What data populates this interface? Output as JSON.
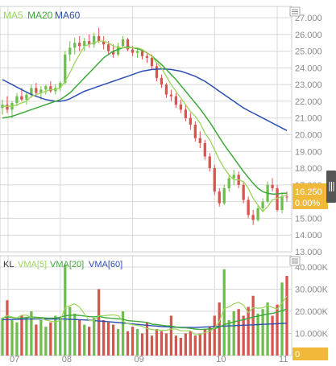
{
  "colors": {
    "ma5": "#9bd65a",
    "ma20": "#3fa83a",
    "ma60": "#2d4fb0",
    "up": "#6cbf4a",
    "down": "#d9534f",
    "grid": "#d8d8d8",
    "axis_text": "#8a8a8a",
    "price_tag": "#f0b93a",
    "handle": "#555555"
  },
  "icons": {
    "settings_top": "list-settings-icon",
    "settings_bottom": "list-settings-icon",
    "drag_handle": "vertical-grip-icon"
  },
  "legend_price": {
    "ma5": "MA5",
    "ma20": "MA20",
    "ma60": "MA60"
  },
  "legend_volume": {
    "kl": "KL",
    "vma5": "VMA[5]",
    "vma20": "VMA[20]",
    "vma60": "VMA[60]"
  },
  "price_tag": {
    "price": "16.250",
    "change": "0.00%"
  },
  "volume_tag": {
    "value": "0"
  },
  "chart_data": [
    {
      "type": "line",
      "title": "",
      "legend": [
        "MA5",
        "MA20",
        "MA60"
      ],
      "x_tick_labels": [
        "07",
        "08",
        "09",
        "10",
        "11"
      ],
      "y_tick_labels": [
        "27.000",
        "26.000",
        "25.000",
        "24.000",
        "23.000",
        "22.000",
        "21.000",
        "20.000",
        "19.000",
        "18.000",
        "17.000",
        "16.000",
        "15.000",
        "14.000",
        "13.000"
      ],
      "ylim": [
        13,
        27
      ],
      "candles": [
        [
          21.6,
          22.1,
          21.2,
          21.8
        ],
        [
          21.8,
          22.3,
          21.3,
          21.5
        ],
        [
          21.5,
          22.0,
          21.0,
          21.9
        ],
        [
          21.9,
          22.5,
          21.7,
          22.3
        ],
        [
          22.3,
          22.8,
          22.0,
          22.1
        ],
        [
          22.1,
          22.6,
          21.8,
          22.4
        ],
        [
          22.4,
          23.0,
          22.2,
          22.8
        ],
        [
          22.8,
          23.1,
          22.3,
          22.5
        ],
        [
          22.5,
          22.9,
          22.1,
          22.7
        ],
        [
          22.7,
          23.0,
          22.4,
          22.9
        ],
        [
          22.9,
          23.2,
          22.5,
          22.6
        ],
        [
          22.6,
          23.0,
          22.4,
          22.8
        ],
        [
          22.8,
          23.2,
          22.6,
          23.1
        ],
        [
          23.1,
          25.0,
          23.0,
          24.8
        ],
        [
          24.8,
          25.6,
          24.4,
          25.2
        ],
        [
          25.2,
          25.8,
          24.8,
          25.5
        ],
        [
          25.5,
          25.9,
          25.0,
          25.3
        ],
        [
          25.3,
          25.8,
          25.0,
          25.6
        ],
        [
          25.6,
          26.0,
          25.2,
          25.4
        ],
        [
          25.4,
          26.1,
          25.2,
          25.9
        ],
        [
          25.9,
          26.4,
          25.5,
          25.6
        ],
        [
          25.6,
          25.9,
          25.1,
          25.4
        ],
        [
          25.4,
          25.6,
          24.8,
          25.0
        ],
        [
          25.0,
          25.4,
          24.6,
          24.8
        ],
        [
          24.8,
          25.5,
          24.7,
          25.3
        ],
        [
          25.3,
          25.9,
          25.2,
          25.7
        ],
        [
          25.7,
          25.8,
          25.0,
          25.1
        ],
        [
          25.1,
          25.3,
          24.7,
          24.9
        ],
        [
          24.9,
          25.2,
          24.6,
          25.0
        ],
        [
          25.0,
          25.1,
          24.5,
          24.7
        ],
        [
          24.7,
          24.9,
          24.3,
          24.6
        ],
        [
          24.6,
          24.8,
          23.9,
          24.1
        ],
        [
          24.1,
          24.3,
          23.2,
          23.4
        ],
        [
          23.4,
          23.6,
          22.8,
          23.0
        ],
        [
          23.0,
          23.1,
          22.2,
          22.4
        ],
        [
          22.4,
          22.7,
          22.0,
          22.3
        ],
        [
          22.3,
          22.5,
          21.6,
          21.8
        ],
        [
          21.8,
          22.1,
          21.3,
          21.5
        ],
        [
          21.5,
          21.8,
          20.8,
          21.0
        ],
        [
          21.0,
          21.3,
          20.3,
          20.6
        ],
        [
          20.6,
          20.8,
          19.6,
          19.8
        ],
        [
          19.8,
          20.2,
          19.2,
          19.5
        ],
        [
          19.5,
          19.7,
          18.5,
          18.7
        ],
        [
          18.7,
          18.9,
          17.8,
          18.0
        ],
        [
          18.0,
          18.2,
          16.4,
          16.6
        ],
        [
          16.6,
          16.8,
          15.7,
          15.9
        ],
        [
          15.9,
          17.0,
          15.8,
          16.8
        ],
        [
          16.8,
          17.6,
          16.6,
          17.4
        ],
        [
          17.4,
          17.9,
          17.0,
          17.6
        ],
        [
          17.6,
          17.8,
          16.8,
          17.0
        ],
        [
          17.0,
          17.2,
          15.9,
          16.1
        ],
        [
          16.1,
          16.3,
          15.0,
          15.2
        ],
        [
          15.2,
          15.5,
          14.6,
          14.9
        ],
        [
          14.9,
          15.8,
          14.8,
          15.6
        ],
        [
          15.6,
          16.2,
          15.4,
          16.0
        ],
        [
          16.0,
          17.2,
          15.9,
          17.0
        ],
        [
          17.0,
          17.4,
          16.6,
          16.8
        ],
        [
          16.8,
          17.0,
          15.4,
          15.5
        ],
        [
          15.5,
          16.5,
          15.3,
          16.3
        ],
        [
          16.3,
          16.6,
          16.0,
          16.25
        ]
      ],
      "ma5": [
        21.7,
        21.7,
        21.7,
        21.8,
        21.9,
        22.0,
        22.3,
        22.4,
        22.5,
        22.6,
        22.7,
        22.7,
        22.8,
        23.2,
        23.7,
        24.3,
        24.8,
        25.3,
        25.4,
        25.5,
        25.6,
        25.6,
        25.5,
        25.3,
        25.2,
        25.2,
        25.2,
        25.2,
        25.2,
        25.1,
        24.9,
        24.7,
        24.3,
        24.0,
        23.5,
        23.0,
        22.6,
        22.2,
        21.8,
        21.4,
        21.1,
        20.7,
        20.1,
        19.7,
        19.1,
        18.5,
        18.0,
        17.6,
        17.3,
        17.3,
        17.2,
        16.8,
        16.2,
        15.8,
        15.4,
        15.7,
        16.1,
        16.2,
        16.3,
        16.4
      ],
      "ma20": [
        21.0,
        21.05,
        21.1,
        21.2,
        21.3,
        21.4,
        21.5,
        21.6,
        21.7,
        21.8,
        21.9,
        22.0,
        22.1,
        22.3,
        22.5,
        22.8,
        23.1,
        23.4,
        23.7,
        24.0,
        24.3,
        24.6,
        24.8,
        25.0,
        25.1,
        25.2,
        25.25,
        25.2,
        25.15,
        25.05,
        24.9,
        24.7,
        24.45,
        24.2,
        23.9,
        23.6,
        23.3,
        22.95,
        22.6,
        22.25,
        21.9,
        21.55,
        21.15,
        20.75,
        20.3,
        19.85,
        19.4,
        19.0,
        18.6,
        18.2,
        17.8,
        17.45,
        17.1,
        16.8,
        16.6,
        16.5,
        16.45,
        16.45,
        16.5,
        16.5
      ],
      "ma60": [
        23.3,
        23.15,
        23.0,
        22.85,
        22.7,
        22.55,
        22.4,
        22.3,
        22.2,
        22.1,
        22.05,
        22.0,
        22.0,
        22.05,
        22.15,
        22.3,
        22.45,
        22.6,
        22.7,
        22.8,
        22.9,
        23.0,
        23.1,
        23.2,
        23.3,
        23.4,
        23.5,
        23.6,
        23.7,
        23.8,
        23.85,
        23.9,
        23.92,
        23.93,
        23.92,
        23.9,
        23.85,
        23.8,
        23.7,
        23.6,
        23.5,
        23.35,
        23.2,
        23.0,
        22.8,
        22.6,
        22.4,
        22.2,
        22.0,
        21.8,
        21.6,
        21.45,
        21.3,
        21.15,
        21.0,
        20.85,
        20.7,
        20.55,
        20.4,
        20.25
      ]
    },
    {
      "type": "bar",
      "title": "",
      "legend": [
        "KL",
        "VMA[5]",
        "VMA[20]",
        "VMA[60]"
      ],
      "x_tick_labels": [
        "07",
        "08",
        "09",
        "10",
        "11"
      ],
      "y_tick_labels": [
        "40.000K",
        "30.000K",
        "20.000K",
        "10.000K",
        "0"
      ],
      "ylim": [
        0,
        40000
      ],
      "volumes": [
        17000,
        25000,
        16000,
        15000,
        18000,
        17000,
        20000,
        14000,
        16000,
        13000,
        15000,
        18000,
        17000,
        41000,
        22000,
        19000,
        16000,
        14000,
        13000,
        17000,
        30000,
        16000,
        15000,
        14000,
        12000,
        20000,
        11000,
        13000,
        12000,
        10000,
        15000,
        9000,
        12000,
        11000,
        10000,
        18000,
        9000,
        8000,
        10000,
        11000,
        9000,
        10000,
        12000,
        13000,
        18000,
        24000,
        39000,
        16000,
        20000,
        21000,
        18000,
        22000,
        27000,
        19000,
        21000,
        24000,
        18000,
        23000,
        33000,
        36000
      ],
      "vma5": [
        17000,
        18000,
        17500,
        17000,
        18200,
        18200,
        17200,
        16800,
        17000,
        16000,
        15600,
        15200,
        15800,
        21600,
        22600,
        23400,
        22000,
        18800,
        15800,
        15800,
        18000,
        18000,
        18200,
        18400,
        18000,
        15400,
        14400,
        14000,
        13600,
        13200,
        12200,
        11800,
        11600,
        11400,
        11400,
        12000,
        12000,
        11200,
        11200,
        11200,
        9400,
        9600,
        10400,
        11000,
        12400,
        15400,
        21200,
        22000,
        23400,
        24000,
        22800,
        19400,
        21600,
        21400,
        21600,
        22600,
        21800,
        21000,
        23800,
        26800
      ],
      "vma20": [
        17000,
        17500,
        17200,
        16800,
        17000,
        17200,
        17400,
        17300,
        17200,
        17000,
        16900,
        17000,
        17300,
        18000,
        18200,
        18300,
        18100,
        17900,
        17600,
        17500,
        17800,
        17200,
        17000,
        16800,
        16600,
        16400,
        15800,
        15600,
        15400,
        15200,
        15000,
        14200,
        14000,
        13700,
        13400,
        13300,
        12900,
        12600,
        12500,
        12300,
        12000,
        11800,
        11900,
        12000,
        12200,
        12800,
        14000,
        14600,
        15200,
        15800,
        16200,
        16800,
        17400,
        17800,
        18300,
        18800,
        19100,
        19600,
        20300,
        21000
      ],
      "vma60": [
        16200,
        16300,
        16300,
        16400,
        16400,
        16500,
        16500,
        16500,
        16500,
        16500,
        16500,
        16500,
        16500,
        16500,
        16400,
        16300,
        16200,
        16100,
        16000,
        15800,
        15600,
        15500,
        15300,
        15100,
        14900,
        14700,
        14500,
        14300,
        14100,
        13900,
        13700,
        13500,
        13300,
        13100,
        13000,
        12900,
        12800,
        12700,
        12700,
        12700,
        12700,
        12800,
        12900,
        13000,
        13100,
        13200,
        13300,
        13400,
        13500,
        13600,
        13700,
        13800,
        13900,
        14000,
        14100,
        14200,
        14300,
        14400,
        14500,
        14600
      ]
    }
  ]
}
